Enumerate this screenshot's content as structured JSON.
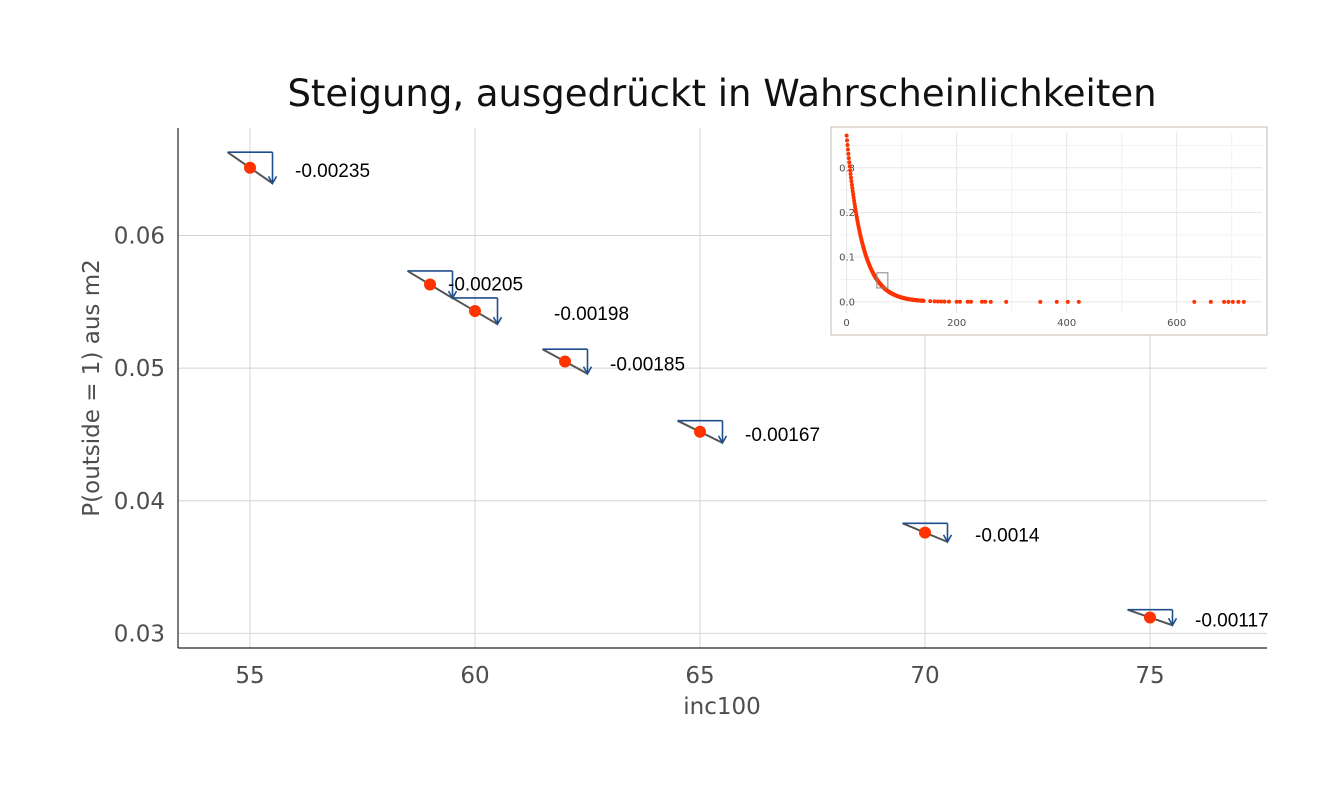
{
  "chart_data": [
    {
      "type": "scatter",
      "title": "Steigung, ausgedrückt in Wahrscheinlichkeiten",
      "xlabel": "inc100",
      "ylabel": "P(outside = 1) aus m2",
      "xlim": [
        53.4,
        77.6
      ],
      "ylim": [
        0.0289,
        0.0681
      ],
      "xticks": [
        55,
        60,
        65,
        70,
        75
      ],
      "xtick_labels": [
        "55",
        "60",
        "65",
        "70",
        "75"
      ],
      "yticks": [
        0.03,
        0.04,
        0.05,
        0.06
      ],
      "ytick_labels": [
        "0.03",
        "0.04",
        "0.05",
        "0.06"
      ],
      "grid": true,
      "point_color": "#ff3300",
      "slope_color": "#1f4e8c",
      "points": [
        {
          "x": 55,
          "y": 0.0651,
          "slope": -0.00235,
          "label": "-0.00235"
        },
        {
          "x": 59,
          "y": 0.0563,
          "slope": -0.00205,
          "label": "-0.00205"
        },
        {
          "x": 60,
          "y": 0.0543,
          "slope": -0.00198,
          "label": "-0.00198"
        },
        {
          "x": 62,
          "y": 0.0505,
          "slope": -0.00185,
          "label": "-0.00185"
        },
        {
          "x": 65,
          "y": 0.0452,
          "slope": -0.00167,
          "label": "-0.00167"
        },
        {
          "x": 70,
          "y": 0.0376,
          "slope": -0.0014,
          "label": "-0.0014"
        },
        {
          "x": 75,
          "y": 0.0312,
          "slope": -0.00117,
          "label": "-0.00117"
        }
      ]
    },
    {
      "type": "scatter",
      "title": "",
      "xlabel": "",
      "ylabel": "",
      "xlim": [
        -12,
        755
      ],
      "ylim": [
        -0.025,
        0.38
      ],
      "xticks": [
        0,
        200,
        400,
        600
      ],
      "xtick_labels": [
        "0",
        "200",
        "400",
        "600"
      ],
      "yticks": [
        0.0,
        0.1,
        0.2,
        0.3
      ],
      "ytick_labels": [
        "0.0",
        "0.1",
        "0.2",
        "0.3"
      ],
      "grid": true,
      "point_color": "#ff3300",
      "curve": {
        "x_start": 0,
        "x_end": 140,
        "y_at_0": 0.372,
        "decay_rate": 0.0365
      },
      "extra_points_x": [
        152,
        160,
        166,
        172,
        178,
        186,
        200,
        206,
        220,
        226,
        246,
        252,
        262,
        290,
        352,
        382,
        402,
        422,
        632,
        662,
        686,
        694,
        702,
        712,
        722
      ],
      "highlight_box": {
        "x": [
          55,
          75
        ],
        "y": [
          0.031,
          0.065
        ],
        "color": "#888888"
      }
    }
  ]
}
